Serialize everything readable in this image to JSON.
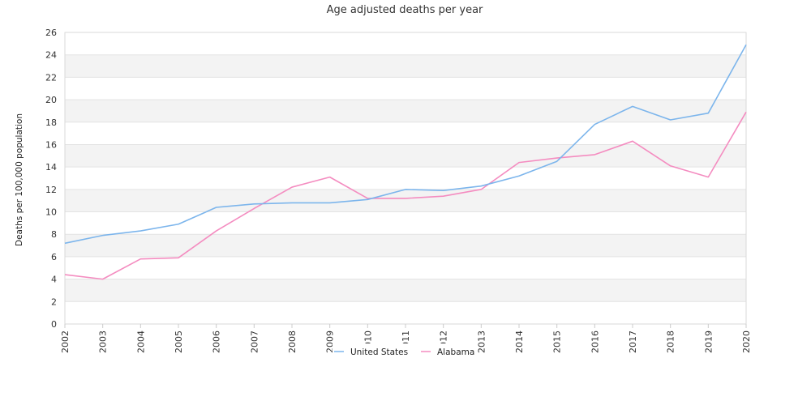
{
  "chart_data": {
    "type": "line",
    "title": "Age adjusted deaths per year",
    "xlabel": "",
    "ylabel": "Deaths per 100,000 population",
    "ylim": [
      0,
      26
    ],
    "yticks": [
      0,
      2,
      4,
      6,
      8,
      10,
      12,
      14,
      16,
      18,
      20,
      22,
      24,
      26
    ],
    "categories": [
      "2002",
      "2003",
      "2004",
      "2005",
      "2006",
      "2007",
      "2008",
      "2009",
      "2010",
      "2011",
      "2012",
      "2013",
      "2014",
      "2015",
      "2016",
      "2017",
      "2018",
      "2019",
      "2020"
    ],
    "series": [
      {
        "name": "United States",
        "color": "#7cb5ec",
        "values": [
          7.2,
          7.9,
          8.3,
          8.9,
          10.4,
          10.7,
          10.8,
          10.8,
          11.1,
          12.0,
          11.9,
          12.3,
          13.2,
          14.5,
          17.8,
          19.4,
          18.2,
          18.8,
          24.9
        ]
      },
      {
        "name": "Alabama",
        "color": "#f48cc0",
        "values": [
          4.4,
          4.0,
          5.8,
          5.9,
          8.3,
          10.3,
          12.2,
          13.1,
          11.2,
          11.2,
          11.4,
          12.0,
          14.4,
          14.8,
          15.1,
          16.3,
          14.1,
          13.1,
          18.9
        ]
      }
    ],
    "grid": true,
    "banded_background": true,
    "legend_position": "bottom-center"
  }
}
